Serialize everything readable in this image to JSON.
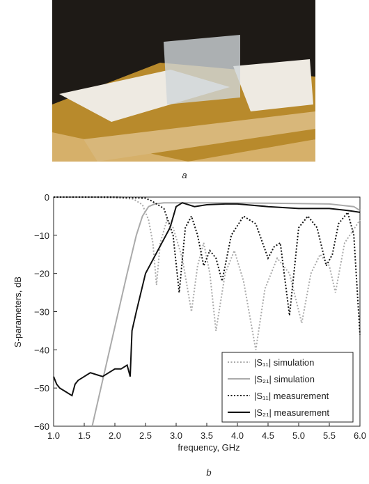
{
  "photo_label": "a",
  "chart_data": {
    "type": "line",
    "panel_label": "b",
    "xlabel": "frequency, GHz",
    "ylabel": "S-parameters, dB",
    "xlim": [
      1.0,
      6.0
    ],
    "ylim": [
      -60,
      0
    ],
    "xticks": [
      {
        "value": 1.0,
        "label": "1.0"
      },
      {
        "value": 1.5,
        "label": "1.5"
      },
      {
        "value": 2.0,
        "label": "2.0"
      },
      {
        "value": 2.5,
        "label": "2.5"
      },
      {
        "value": 3.0,
        "label": "3.0"
      },
      {
        "value": 3.5,
        "label": "3.5"
      },
      {
        "value": 4.0,
        "label": "4.0"
      },
      {
        "value": 4.5,
        "label": "4.5"
      },
      {
        "value": 5.0,
        "label": "5.0"
      },
      {
        "value": 5.5,
        "label": "5.5"
      },
      {
        "value": 6.0,
        "label": "6.0"
      }
    ],
    "yticks": [
      0,
      {
        "value": -10,
        "label": "−10"
      },
      {
        "value": -20,
        "label": "−20"
      },
      {
        "value": -30,
        "label": "−30"
      },
      {
        "value": -40,
        "label": "−40"
      },
      {
        "value": -50,
        "label": "−50"
      },
      {
        "value": -60,
        "label": "−60"
      }
    ],
    "legend": "lower right",
    "series": [
      {
        "name": "|S₁₁| simulation",
        "color": "#aaaaaa",
        "dash": "dotted",
        "x": [
          1.0,
          1.5,
          2.0,
          2.3,
          2.45,
          2.55,
          2.62,
          2.68,
          2.74,
          2.85,
          2.95,
          3.1,
          3.25,
          3.35,
          3.45,
          3.55,
          3.65,
          3.8,
          3.95,
          4.1,
          4.3,
          4.45,
          4.65,
          4.85,
          5.05,
          5.2,
          5.35,
          5.5,
          5.6,
          5.75,
          6.0
        ],
        "values": [
          0,
          0,
          -0.2,
          -0.5,
          -2,
          -6,
          -12,
          -23,
          -12,
          -6,
          -8,
          -16,
          -30,
          -18,
          -12,
          -20,
          -35,
          -20,
          -14,
          -22,
          -40,
          -24,
          -16,
          -20,
          -33,
          -20,
          -15,
          -18,
          -25,
          -12,
          -6
        ]
      },
      {
        "name": "|S₂₁| simulation",
        "color": "#aaaaaa",
        "dash": "solid",
        "x": [
          1.63,
          1.8,
          2.0,
          2.2,
          2.35,
          2.45,
          2.55,
          2.65,
          2.8,
          3.5,
          4.5,
          5.5,
          5.9,
          6.0
        ],
        "values": [
          -60,
          -48,
          -34,
          -20,
          -10,
          -5,
          -2.5,
          -1.8,
          -1.5,
          -1.5,
          -1.6,
          -1.8,
          -2.5,
          -3.5
        ]
      },
      {
        "name": "|S₁₁| measurement",
        "color": "#111111",
        "dash": "dotted",
        "x": [
          1.0,
          1.5,
          2.0,
          2.5,
          2.6,
          2.8,
          2.95,
          3.05,
          3.15,
          3.25,
          3.35,
          3.45,
          3.55,
          3.65,
          3.75,
          3.9,
          4.1,
          4.3,
          4.5,
          4.6,
          4.7,
          4.85,
          5.0,
          5.15,
          5.3,
          5.45,
          5.55,
          5.65,
          5.8,
          5.9,
          6.0
        ],
        "values": [
          0,
          0,
          0,
          -0.3,
          -1,
          -3,
          -10,
          -25,
          -8,
          -5,
          -10,
          -18,
          -14,
          -16,
          -22,
          -10,
          -5,
          -7,
          -16,
          -13,
          -12,
          -31,
          -8,
          -5,
          -8,
          -18,
          -15,
          -7,
          -4,
          -10,
          -36
        ]
      },
      {
        "name": "|S₂₁| measurement",
        "color": "#111111",
        "dash": "solid",
        "x": [
          1.0,
          1.05,
          1.1,
          1.2,
          1.3,
          1.35,
          1.4,
          1.5,
          1.6,
          1.7,
          1.8,
          1.9,
          2.0,
          2.1,
          2.2,
          2.25,
          2.28,
          2.35,
          2.5,
          2.7,
          2.9,
          3.0,
          3.1,
          3.3,
          3.5,
          3.8,
          4.0,
          4.5,
          5.0,
          5.5,
          5.8,
          6.0
        ],
        "values": [
          -47,
          -49,
          -50,
          -51,
          -52,
          -49,
          -48,
          -47,
          -46,
          -46.5,
          -47,
          -46,
          -45,
          -45,
          -44,
          -47,
          -35,
          -30,
          -20,
          -14,
          -8,
          -2.5,
          -1.5,
          -2.5,
          -2,
          -1.8,
          -1.8,
          -2.5,
          -3,
          -3,
          -3.5,
          -4
        ]
      }
    ]
  }
}
